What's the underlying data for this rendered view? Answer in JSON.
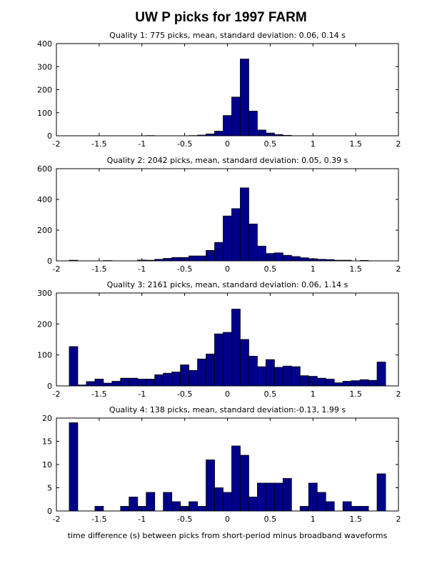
{
  "page_title": "UW P picks for 1997 FARM",
  "x_axis_label": "time difference (s) between picks from short-period minus broadband waveforms",
  "chart_data": [
    {
      "type": "bar",
      "title": "Quality 1:  775 picks, mean, standard deviation: 0.06,  0.14 s",
      "xlim": [
        -2,
        2
      ],
      "ylim": [
        0,
        400
      ],
      "xticks": [
        -2,
        -1.5,
        -1,
        -0.5,
        0,
        0.5,
        1,
        1.5,
        2
      ],
      "yticks": [
        0,
        100,
        200,
        300,
        400
      ],
      "xtick_labels": [
        "-2",
        "-1.5",
        "-1",
        "-0.5",
        "0",
        "0.5",
        "1",
        "1.5",
        "2"
      ],
      "ytick_labels": [
        "0",
        "100",
        "200",
        "300",
        "400"
      ],
      "bin_width": 0.1,
      "bins": [
        {
          "x": -0.9,
          "y": 1
        },
        {
          "x": -0.4,
          "y": 1
        },
        {
          "x": -0.3,
          "y": 3
        },
        {
          "x": -0.2,
          "y": 8
        },
        {
          "x": -0.1,
          "y": 20
        },
        {
          "x": 0.0,
          "y": 88
        },
        {
          "x": 0.1,
          "y": 168
        },
        {
          "x": 0.2,
          "y": 333
        },
        {
          "x": 0.3,
          "y": 107
        },
        {
          "x": 0.4,
          "y": 25
        },
        {
          "x": 0.5,
          "y": 12
        },
        {
          "x": 0.6,
          "y": 5
        },
        {
          "x": 0.7,
          "y": 2
        }
      ]
    },
    {
      "type": "bar",
      "title": "Quality 2:  2042 picks, mean, standard deviation: 0.05,  0.39 s",
      "xlim": [
        -2,
        2
      ],
      "ylim": [
        0,
        600
      ],
      "xticks": [
        -2,
        -1.5,
        -1,
        -0.5,
        0,
        0.5,
        1,
        1.5,
        2
      ],
      "yticks": [
        0,
        200,
        400,
        600
      ],
      "xtick_labels": [
        "-2",
        "-1.5",
        "-1",
        "-0.5",
        "0",
        "0.5",
        "1",
        "1.5",
        "2"
      ],
      "ytick_labels": [
        "0",
        "200",
        "400",
        "600"
      ],
      "bin_width": 0.1,
      "bins": [
        {
          "x": -1.8,
          "y": 4
        },
        {
          "x": -1.4,
          "y": 2
        },
        {
          "x": -1.0,
          "y": 5
        },
        {
          "x": -0.9,
          "y": 4
        },
        {
          "x": -0.8,
          "y": 10
        },
        {
          "x": -0.7,
          "y": 16
        },
        {
          "x": -0.6,
          "y": 22
        },
        {
          "x": -0.5,
          "y": 22
        },
        {
          "x": -0.4,
          "y": 32
        },
        {
          "x": -0.3,
          "y": 32
        },
        {
          "x": -0.2,
          "y": 68
        },
        {
          "x": -0.1,
          "y": 120
        },
        {
          "x": 0.0,
          "y": 292
        },
        {
          "x": 0.1,
          "y": 340
        },
        {
          "x": 0.2,
          "y": 475
        },
        {
          "x": 0.3,
          "y": 240
        },
        {
          "x": 0.4,
          "y": 96
        },
        {
          "x": 0.5,
          "y": 48
        },
        {
          "x": 0.6,
          "y": 52
        },
        {
          "x": 0.7,
          "y": 36
        },
        {
          "x": 0.8,
          "y": 28
        },
        {
          "x": 0.9,
          "y": 20
        },
        {
          "x": 1.0,
          "y": 14
        },
        {
          "x": 1.1,
          "y": 10
        },
        {
          "x": 1.2,
          "y": 8
        },
        {
          "x": 1.3,
          "y": 4
        },
        {
          "x": 1.4,
          "y": 4
        },
        {
          "x": 1.6,
          "y": 3
        }
      ]
    },
    {
      "type": "bar",
      "title": "Quality 3:  2161 picks, mean, standard deviation: 0.06,  1.14 s",
      "xlim": [
        -2,
        2
      ],
      "ylim": [
        0,
        300
      ],
      "xticks": [
        -2,
        -1.5,
        -1,
        -0.5,
        0,
        0.5,
        1,
        1.5,
        2
      ],
      "yticks": [
        0,
        100,
        200,
        300
      ],
      "xtick_labels": [
        "-2",
        "-1.5",
        "-1",
        "-0.5",
        "0",
        "0.5",
        "1",
        "1.5",
        "2"
      ],
      "ytick_labels": [
        "0",
        "100",
        "200",
        "300"
      ],
      "bin_width": 0.1,
      "bins": [
        {
          "x": -1.8,
          "y": 127
        },
        {
          "x": -1.7,
          "y": 3
        },
        {
          "x": -1.6,
          "y": 14
        },
        {
          "x": -1.5,
          "y": 22
        },
        {
          "x": -1.4,
          "y": 9
        },
        {
          "x": -1.3,
          "y": 15
        },
        {
          "x": -1.2,
          "y": 25
        },
        {
          "x": -1.1,
          "y": 25
        },
        {
          "x": -1.0,
          "y": 22
        },
        {
          "x": -0.9,
          "y": 22
        },
        {
          "x": -0.8,
          "y": 36
        },
        {
          "x": -0.7,
          "y": 41
        },
        {
          "x": -0.6,
          "y": 45
        },
        {
          "x": -0.5,
          "y": 68
        },
        {
          "x": -0.4,
          "y": 50
        },
        {
          "x": -0.3,
          "y": 87
        },
        {
          "x": -0.2,
          "y": 103
        },
        {
          "x": -0.1,
          "y": 168
        },
        {
          "x": 0.0,
          "y": 173
        },
        {
          "x": 0.1,
          "y": 248
        },
        {
          "x": 0.2,
          "y": 150
        },
        {
          "x": 0.3,
          "y": 96
        },
        {
          "x": 0.4,
          "y": 62
        },
        {
          "x": 0.5,
          "y": 85
        },
        {
          "x": 0.6,
          "y": 60
        },
        {
          "x": 0.7,
          "y": 64
        },
        {
          "x": 0.8,
          "y": 62
        },
        {
          "x": 0.9,
          "y": 33
        },
        {
          "x": 1.0,
          "y": 31
        },
        {
          "x": 1.1,
          "y": 25
        },
        {
          "x": 1.2,
          "y": 22
        },
        {
          "x": 1.3,
          "y": 10
        },
        {
          "x": 1.4,
          "y": 15
        },
        {
          "x": 1.5,
          "y": 17
        },
        {
          "x": 1.6,
          "y": 20
        },
        {
          "x": 1.7,
          "y": 18
        },
        {
          "x": 1.8,
          "y": 77
        }
      ]
    },
    {
      "type": "bar",
      "title": "Quality 4:  138 picks, mean, standard deviation:-0.13,  1.99 s",
      "xlim": [
        -2,
        2
      ],
      "ylim": [
        0,
        20
      ],
      "xticks": [
        -2,
        -1.5,
        -1,
        -0.5,
        0,
        0.5,
        1,
        1.5,
        2
      ],
      "yticks": [
        0,
        5,
        10,
        15,
        20
      ],
      "xtick_labels": [
        "-2",
        "-1.5",
        "-1",
        "-0.5",
        "0",
        "0.5",
        "1",
        "1.5",
        "2"
      ],
      "ytick_labels": [
        "0",
        "5",
        "10",
        "15",
        "20"
      ],
      "bin_width": 0.1,
      "bins": [
        {
          "x": -1.8,
          "y": 19
        },
        {
          "x": -1.5,
          "y": 1
        },
        {
          "x": -1.2,
          "y": 1
        },
        {
          "x": -1.1,
          "y": 3
        },
        {
          "x": -1.0,
          "y": 1
        },
        {
          "x": -0.9,
          "y": 4
        },
        {
          "x": -0.7,
          "y": 4
        },
        {
          "x": -0.6,
          "y": 2
        },
        {
          "x": -0.5,
          "y": 1
        },
        {
          "x": -0.4,
          "y": 2
        },
        {
          "x": -0.3,
          "y": 1
        },
        {
          "x": -0.2,
          "y": 11
        },
        {
          "x": -0.1,
          "y": 5
        },
        {
          "x": 0.0,
          "y": 4
        },
        {
          "x": 0.1,
          "y": 14
        },
        {
          "x": 0.2,
          "y": 12
        },
        {
          "x": 0.3,
          "y": 3
        },
        {
          "x": 0.4,
          "y": 6
        },
        {
          "x": 0.5,
          "y": 6
        },
        {
          "x": 0.6,
          "y": 6
        },
        {
          "x": 0.7,
          "y": 7
        },
        {
          "x": 0.9,
          "y": 1
        },
        {
          "x": 1.0,
          "y": 6
        },
        {
          "x": 1.1,
          "y": 4
        },
        {
          "x": 1.2,
          "y": 2
        },
        {
          "x": 1.4,
          "y": 2
        },
        {
          "x": 1.5,
          "y": 1
        },
        {
          "x": 1.6,
          "y": 1
        },
        {
          "x": 1.8,
          "y": 8
        }
      ]
    }
  ],
  "colors": {
    "bar_fill": "#00008b",
    "bar_edge": "#000000",
    "axes": "#000000",
    "background": "#ffffff"
  }
}
